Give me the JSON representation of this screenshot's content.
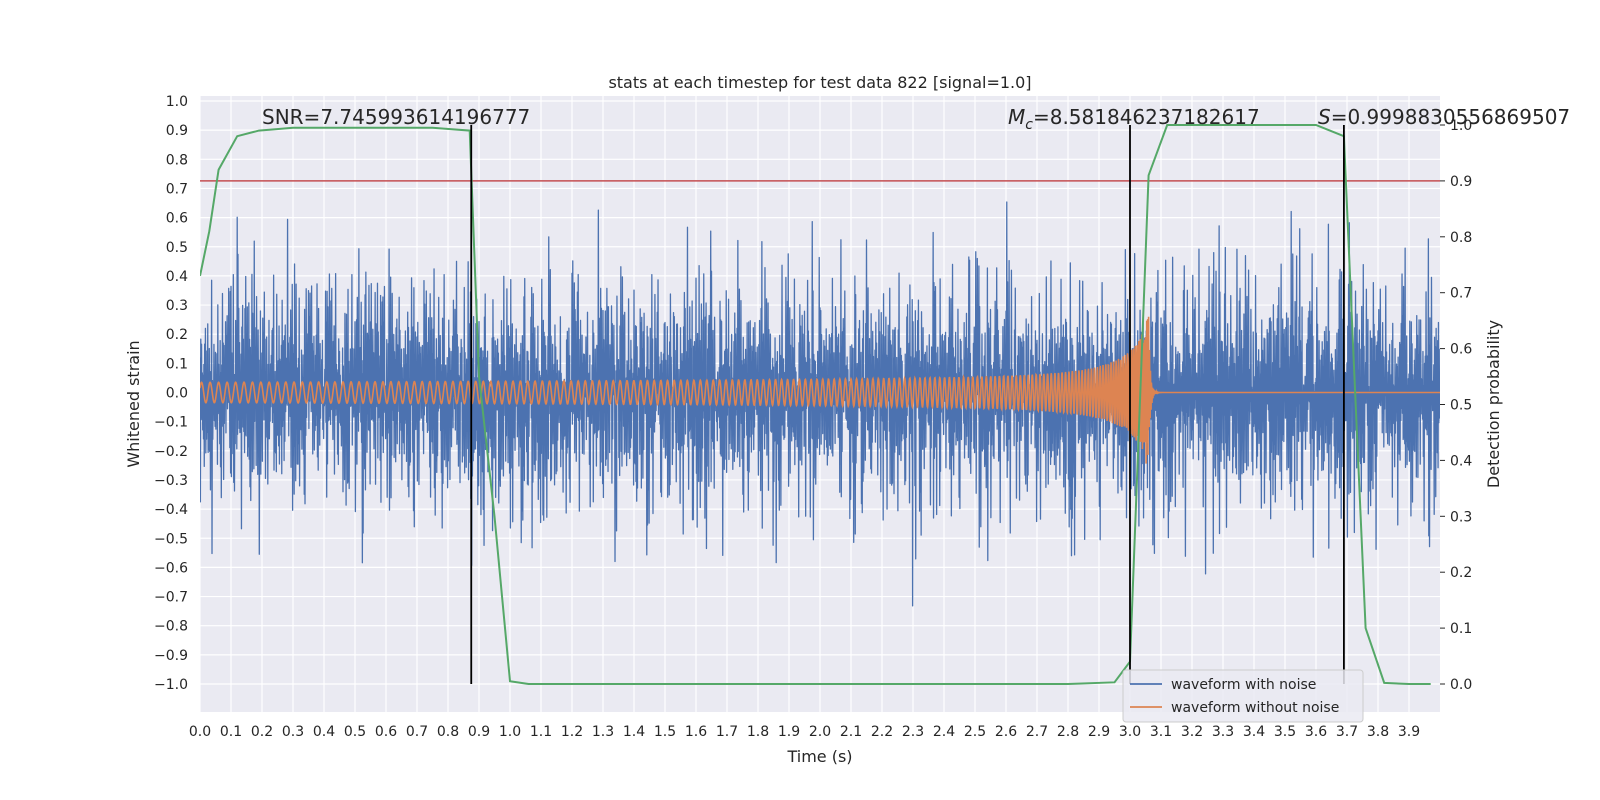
{
  "chart_data": {
    "type": "line",
    "title": "stats at each timestep for test data 822 [signal=1.0]",
    "xlabel": "Time (s)",
    "ylabel": "Whitened strain",
    "ylabel_right": "Detection probability",
    "xlim": [
      0.0,
      4.0
    ],
    "ylim": [
      -1.0,
      1.0
    ],
    "ylim_right": [
      0.0,
      1.0
    ],
    "x_ticks": [
      0.0,
      0.1,
      0.2,
      0.3,
      0.4,
      0.5,
      0.6,
      0.7,
      0.8,
      0.9,
      1.0,
      1.1,
      1.2,
      1.3,
      1.4,
      1.5,
      1.6,
      1.7,
      1.8,
      1.9,
      2.0,
      2.1,
      2.2,
      2.3,
      2.4,
      2.5,
      2.6,
      2.7,
      2.8,
      2.9,
      3.0,
      3.1,
      3.2,
      3.3,
      3.4,
      3.5,
      3.6,
      3.7,
      3.8,
      3.9
    ],
    "x_tick_labels": [
      "0.0",
      "0.1",
      "0.2",
      "0.3",
      "0.4",
      "0.5",
      "0.6",
      "0.7",
      "0.8",
      "0.9",
      "1.0",
      "1.1",
      "1.2",
      "1.3",
      "1.4",
      "1.5",
      "1.6",
      "1.7",
      "1.8",
      "1.9",
      "2.0",
      "2.1",
      "2.2",
      "2.3",
      "2.4",
      "2.5",
      "2.6",
      "2.7",
      "2.8",
      "2.9",
      "3.0",
      "3.1",
      "3.2",
      "3.3",
      "3.4",
      "3.5",
      "3.6",
      "3.7",
      "3.8",
      "3.9"
    ],
    "y_ticks": [
      -1.0,
      -0.9,
      -0.8,
      -0.7,
      -0.6,
      -0.5,
      -0.4,
      -0.3,
      -0.2,
      -0.1,
      0.0,
      0.1,
      0.2,
      0.3,
      0.4,
      0.5,
      0.6,
      0.7,
      0.8,
      0.9,
      1.0
    ],
    "y_tick_labels": [
      "−1.0",
      "−0.9",
      "−0.8",
      "−0.7",
      "−0.6",
      "−0.5",
      "−0.4",
      "−0.3",
      "−0.2",
      "−0.1",
      "0.0",
      "0.1",
      "0.2",
      "0.3",
      "0.4",
      "0.5",
      "0.6",
      "0.7",
      "0.8",
      "0.9",
      "1.0"
    ],
    "y_right_ticks": [
      0.0,
      0.1,
      0.2,
      0.3,
      0.4,
      0.5,
      0.6,
      0.7,
      0.8,
      0.9,
      1.0
    ],
    "y_right_tick_labels": [
      "0.0",
      "0.1",
      "0.2",
      "0.3",
      "0.4",
      "0.5",
      "0.6",
      "0.7",
      "0.8",
      "0.9",
      "1.0"
    ],
    "grid": true,
    "legend_position": "lower-right",
    "series": [
      {
        "name": "waveform with noise",
        "color": "#4c72b0",
        "kind": "noise",
        "peak_max": 0.92,
        "peak_min": -1.0
      },
      {
        "name": "waveform without noise",
        "color": "#dd8452",
        "kind": "chirp",
        "merger_time": 3.06,
        "amplitude_start": 0.035,
        "amplitude_peak": 0.26
      },
      {
        "name": "",
        "color": "#55a868",
        "axis": "right",
        "x": [
          0.0,
          0.03,
          0.06,
          0.12,
          0.19,
          0.3,
          0.45,
          0.6,
          0.75,
          0.87,
          0.9,
          0.95,
          1.0,
          1.06,
          1.2,
          2.0,
          2.8,
          2.95,
          3.0,
          3.06,
          3.12,
          3.3,
          3.6,
          3.69,
          3.72,
          3.76,
          3.82,
          3.9,
          3.97
        ],
        "y": [
          0.73,
          0.81,
          0.92,
          0.98,
          0.99,
          0.995,
          0.995,
          0.995,
          0.995,
          0.99,
          0.55,
          0.3,
          0.005,
          0.0,
          0.0,
          0.0,
          0.0,
          0.003,
          0.04,
          0.91,
          1.0,
          1.0,
          1.0,
          0.98,
          0.6,
          0.1,
          0.002,
          0.0,
          0.0
        ]
      }
    ],
    "threshold_line": {
      "axis": "right",
      "value": 0.9,
      "color": "#c44e52"
    },
    "vertical_lines": [
      {
        "x": 0.875,
        "color": "#000000"
      },
      {
        "x": 3.0,
        "color": "#000000"
      },
      {
        "x": 3.69,
        "color": "#000000"
      }
    ],
    "annotations": [
      {
        "prefix": "SNR=",
        "value": "7.745993614196777"
      },
      {
        "prefix": "M",
        "subscript": "c",
        "value": "=8.581846237182617"
      },
      {
        "prefix": "S",
        "value": "=0.9998830556869507"
      }
    ]
  }
}
